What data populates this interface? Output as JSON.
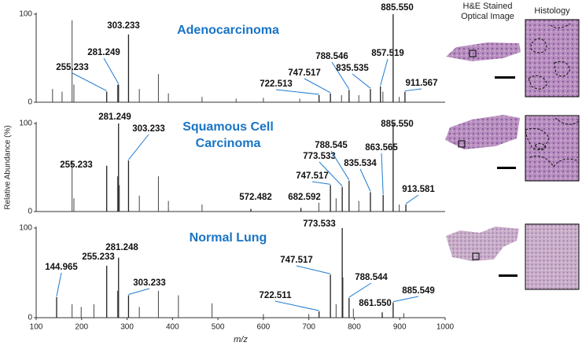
{
  "figure": {
    "y_label": "Relative Abundance (%)",
    "image_columns": [
      "H&E Stained Optical Image",
      "Histology"
    ]
  },
  "chart_data": [
    {
      "type": "spectrum",
      "title": "Adenocarcinoma",
      "xlim": [
        100,
        1000
      ],
      "ylim": [
        0,
        100
      ],
      "yticks": [
        0,
        100
      ],
      "x": [
        136,
        157,
        179,
        183,
        279,
        327,
        369,
        391,
        465,
        540,
        600,
        680,
        772,
        810,
        863,
        899
      ],
      "values": [
        15,
        12,
        93,
        20,
        20,
        15,
        32,
        10,
        6,
        4,
        5,
        4,
        8,
        8,
        12,
        6
      ],
      "annotated_peaks": {
        "x": [
          255.233,
          281.249,
          303.233,
          722.513,
          747.517,
          788.546,
          835.535,
          857.519,
          {
            "value": 885.55,
            "label": "885.550"
          },
          911.567
        ],
        "values": [
          12,
          20,
          77,
          8,
          10,
          14,
          15,
          18,
          100,
          12
        ]
      }
    },
    {
      "type": "spectrum",
      "title": "Squamous Cell Carcinoma",
      "xlim": [
        100,
        1000
      ],
      "ylim": [
        0,
        100
      ],
      "yticks": [
        0,
        100
      ],
      "x": [
        179,
        183,
        279,
        283,
        327,
        369,
        391,
        465,
        722,
        760,
        810,
        899
      ],
      "values": [
        57,
        15,
        40,
        30,
        18,
        40,
        12,
        8,
        10,
        15,
        12,
        8
      ],
      "annotated_peaks": {
        "x": [
          255.233,
          281.249,
          303.233,
          572.482,
          682.592,
          747.517,
          773.533,
          788.545,
          835.534,
          863.565,
          {
            "value": 885.55,
            "label": "885.550"
          },
          913.581
        ],
        "values": [
          52,
          100,
          58,
          3,
          4,
          30,
          28,
          35,
          22,
          19,
          100,
          8
        ]
      }
    },
    {
      "type": "spectrum",
      "title": "Normal Lung",
      "xlim": [
        100,
        1000
      ],
      "ylim": [
        0,
        100
      ],
      "yticks": [
        0,
        100
      ],
      "xticks": [
        100,
        200,
        300,
        400,
        500,
        600,
        700,
        800,
        900,
        1000
      ],
      "x_label": "m/z",
      "x": [
        179,
        199,
        227,
        279,
        327,
        369,
        413,
        487,
        600,
        700,
        760,
        775,
        798,
        909
      ],
      "values": [
        15,
        12,
        15,
        30,
        12,
        30,
        25,
        16,
        4,
        4,
        15,
        45,
        10,
        5
      ],
      "annotated_peaks": {
        "x": [
          144.965,
          255.233,
          281.248,
          303.233,
          722.511,
          747.517,
          773.533,
          788.544,
          {
            "value": 861.55,
            "label": "861.550"
          },
          885.549
        ],
        "values": [
          23,
          58,
          67,
          25,
          7,
          48,
          100,
          22,
          6,
          17
        ]
      }
    }
  ]
}
